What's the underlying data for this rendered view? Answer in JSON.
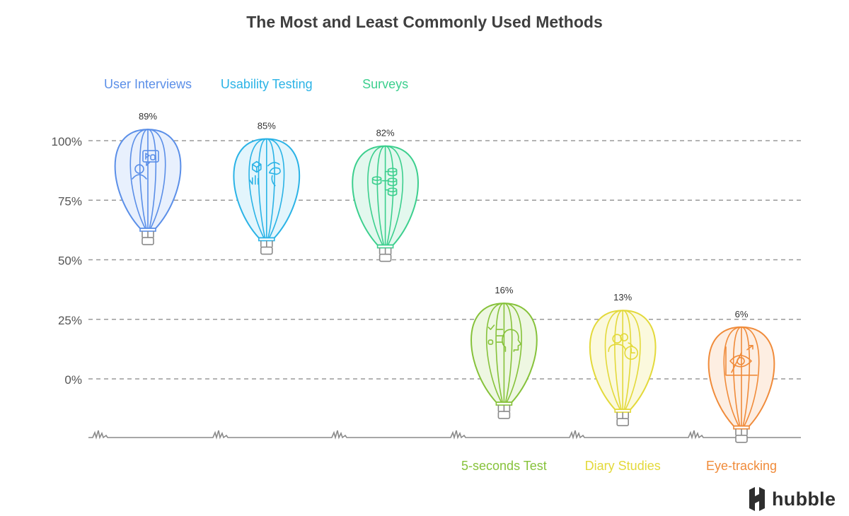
{
  "chart_data": {
    "type": "scatter",
    "title": "The Most and Least Commonly Used Methods",
    "ylim": [
      0,
      100
    ],
    "y_ticks": [
      "0%",
      "25%",
      "50%",
      "75%",
      "100%"
    ],
    "grid": true,
    "points": [
      {
        "label": "User Interviews",
        "value": 89,
        "value_label": "89%",
        "color": "#5b8fe8",
        "fill": "#e8f0fd",
        "icon": "interview-icon",
        "label_position": "top"
      },
      {
        "label": "Usability Testing",
        "value": 85,
        "value_label": "85%",
        "color": "#2bb3e6",
        "fill": "#e3f5fc",
        "icon": "usability-icon",
        "label_position": "top"
      },
      {
        "label": "Surveys",
        "value": 82,
        "value_label": "82%",
        "color": "#3ccf8e",
        "fill": "#e3f8ee",
        "icon": "database-icon",
        "label_position": "top"
      },
      {
        "label": "5-seconds Test",
        "value": 16,
        "value_label": "16%",
        "color": "#86c23a",
        "fill": "#eef7e2",
        "icon": "checklist-head-icon",
        "label_position": "bottom"
      },
      {
        "label": "Diary Studies",
        "value": 13,
        "value_label": "13%",
        "color": "#e3d93a",
        "fill": "#fbf9dd",
        "icon": "user-clock-icon",
        "label_position": "bottom"
      },
      {
        "label": "Eye-tracking",
        "value": 6,
        "value_label": "6%",
        "color": "#f08b3a",
        "fill": "#fdeee2",
        "icon": "eye-chart-icon",
        "label_position": "bottom"
      }
    ]
  },
  "brand": {
    "name": "hubble",
    "logo_icon": "hubble-logo-icon"
  }
}
